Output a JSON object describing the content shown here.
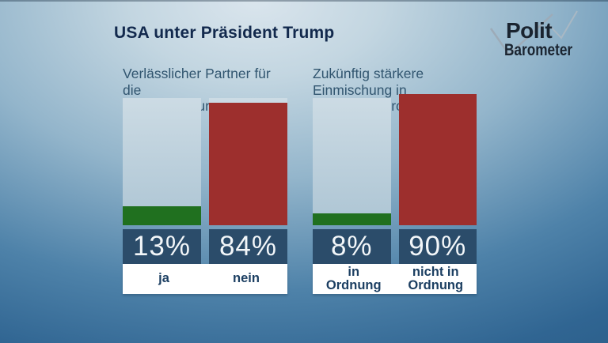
{
  "title": "USA unter Präsident Trump",
  "logo": {
    "line1": "Polit",
    "line2": "Barometer"
  },
  "colors": {
    "background_bottom": "#2b5e89",
    "background_top": "#dae5ed",
    "bar_track": "#bcd0dc",
    "green": "#20701f",
    "red": "#9d2f2d",
    "value_box": "#2b4c6a",
    "value_text": "#f2f6f9",
    "label_text": "#1c3f62",
    "question_text": "#31556f",
    "title_text": "#12294d"
  },
  "chart_data": [
    {
      "type": "bar",
      "question": "Verlässlicher Partner für die Sicherheit Europas?",
      "question_lines": [
        "Verlässlicher Partner für die",
        "Sicherheit Europas?"
      ],
      "categories": [
        "ja",
        "nein"
      ],
      "category_lines": [
        [
          "ja"
        ],
        [
          "nein"
        ]
      ],
      "values": [
        13,
        84
      ],
      "value_labels": [
        "13%",
        "84%"
      ],
      "bar_colors": [
        "#20701f",
        "#9d2f2d"
      ],
      "ylim": [
        0,
        100
      ],
      "legend_position": "none",
      "grid": false
    },
    {
      "type": "bar",
      "question": "Zukünftig stärkere Einmischung in die Politik europäischer Länder ...",
      "question_lines": [
        "Zukünftig stärkere Einmischung in",
        "die Politik europäischer Länder ..."
      ],
      "categories": [
        "in Ordnung",
        "nicht in Ordnung"
      ],
      "category_lines": [
        [
          "in",
          "Ordnung"
        ],
        [
          "nicht in",
          "Ordnung"
        ]
      ],
      "values": [
        8,
        90
      ],
      "value_labels": [
        "8%",
        "90%"
      ],
      "bar_colors": [
        "#20701f",
        "#9d2f2d"
      ],
      "ylim": [
        0,
        100
      ],
      "legend_position": "none",
      "grid": false
    }
  ]
}
